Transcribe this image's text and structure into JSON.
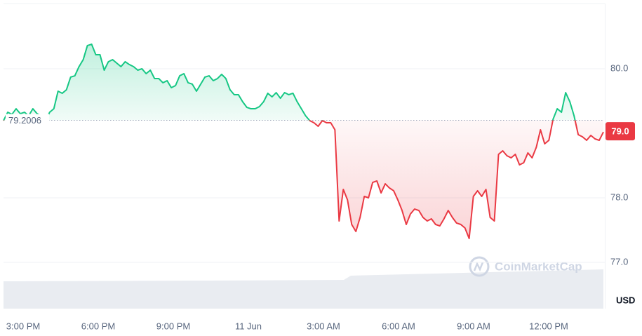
{
  "chart_data": {
    "type": "line",
    "values": [
      79.196,
      79.326,
      79.293,
      79.38,
      79.304,
      79.326,
      79.272,
      79.38,
      79.304,
      79.272,
      79.196,
      79.326,
      79.38,
      79.652,
      79.62,
      79.674,
      79.87,
      79.891,
      80.033,
      80.141,
      80.359,
      80.38,
      80.217,
      80.217,
      79.978,
      80.109,
      80.141,
      80.087,
      80.033,
      80.109,
      80.065,
      80.033,
      79.978,
      80.0,
      79.924,
      79.978,
      79.848,
      79.848,
      79.783,
      79.815,
      79.707,
      79.739,
      79.891,
      79.924,
      79.783,
      79.761,
      79.652,
      79.761,
      79.87,
      79.891,
      79.815,
      79.848,
      79.913,
      79.848,
      79.674,
      79.598,
      79.598,
      79.489,
      79.402,
      79.38,
      79.38,
      79.413,
      79.489,
      79.62,
      79.565,
      79.63,
      79.543,
      79.63,
      79.598,
      79.62,
      79.489,
      79.38,
      79.272,
      79.196,
      79.163,
      79.109,
      79.196,
      79.163,
      79.163,
      79.054,
      77.641,
      78.13,
      77.967,
      77.587,
      77.478,
      77.696,
      78.022,
      78.0,
      78.239,
      78.261,
      78.076,
      78.217,
      78.152,
      78.109,
      77.967,
      77.804,
      77.587,
      77.75,
      77.826,
      77.804,
      77.696,
      77.641,
      77.674,
      77.587,
      77.565,
      77.674,
      77.804,
      77.696,
      77.609,
      77.587,
      77.533,
      77.37,
      78.022,
      78.109,
      78.022,
      78.13,
      77.696,
      77.641,
      78.674,
      78.728,
      78.652,
      78.62,
      78.674,
      78.511,
      78.543,
      78.696,
      78.62,
      78.783,
      79.054,
      78.837,
      78.891,
      79.217,
      79.38,
      79.326,
      79.63,
      79.489,
      79.272,
      78.978,
      78.946,
      78.891,
      78.967,
      78.913,
      78.891,
      79.02
    ],
    "baseline": 79.2006,
    "price_label": "79.0",
    "up_color": "#16c784",
    "down_color": "#ea3943",
    "ylim": [
      76.3,
      81.0
    ],
    "yticks": [
      {
        "value": 77,
        "label": "77.0"
      },
      {
        "value": 78,
        "label": "78.0"
      },
      {
        "value": 80,
        "label": "80.0"
      }
    ],
    "grid": true,
    "xtick_labels": [
      "3:00 PM",
      "6:00 PM",
      "9:00 PM",
      "11 Jun",
      "3:00 AM",
      "6:00 AM",
      "9:00 AM",
      "12:00 PM"
    ],
    "unit_label": "USD",
    "watermark": "CoinMarketCap"
  }
}
